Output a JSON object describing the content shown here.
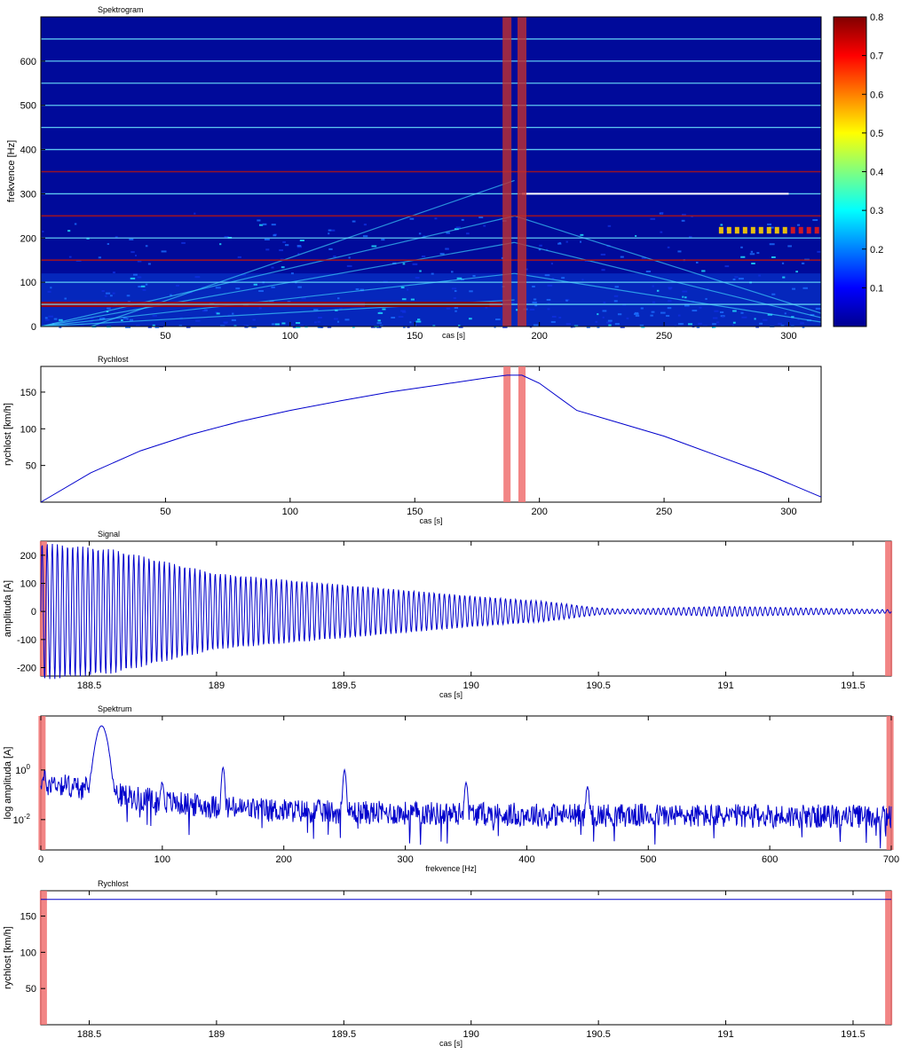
{
  "chart_data": [
    {
      "type": "heatmap",
      "title": "Spektrogram",
      "xlabel": "cas [s]",
      "ylabel": "frekvence [Hz]",
      "xlim": [
        0,
        313
      ],
      "ylim": [
        0,
        700
      ],
      "xticks": [
        50,
        100,
        150,
        200,
        250,
        300
      ],
      "yticks": [
        0,
        100,
        200,
        300,
        400,
        500,
        600
      ],
      "highlight_x": [
        187,
        193
      ],
      "harmonics_hz": [
        50,
        100,
        150,
        200,
        250,
        300,
        350,
        400,
        450,
        500,
        550,
        600,
        650
      ],
      "colorbar": {
        "range": [
          0,
          0.8
        ],
        "ticks": [
          0.1,
          0.2,
          0.3,
          0.4,
          0.5,
          0.6,
          0.7,
          0.8
        ],
        "colormap": "jet"
      }
    },
    {
      "type": "line",
      "title": "Rychlost",
      "xlabel": "cas [s]",
      "ylabel": "rychlost [km/h]",
      "xlim": [
        0,
        313
      ],
      "ylim": [
        0,
        185
      ],
      "xticks": [
        50,
        100,
        150,
        200,
        250,
        300
      ],
      "yticks": [
        50,
        100,
        150
      ],
      "highlight_x": [
        187,
        193
      ],
      "x": [
        0,
        20,
        40,
        60,
        80,
        100,
        120,
        140,
        160,
        180,
        187,
        193,
        200,
        215,
        230,
        250,
        270,
        290,
        313
      ],
      "values": [
        0,
        40,
        70,
        92,
        110,
        125,
        138,
        150,
        160,
        170,
        173,
        173,
        162,
        125,
        110,
        90,
        65,
        40,
        7
      ],
      "color": "#0000cc"
    },
    {
      "type": "line",
      "title": "Signal",
      "xlabel": "cas [s]",
      "ylabel": "amplituda [A]",
      "xlim": [
        188.31,
        191.65
      ],
      "ylim": [
        -230,
        250
      ],
      "xticks": [
        188.5,
        189,
        189.5,
        190,
        190.5,
        191,
        191.5
      ],
      "yticks": [
        -200,
        -100,
        0,
        100,
        200
      ],
      "highlight_x": [
        188.32,
        191.64
      ],
      "envelope_x": [
        188.31,
        188.6,
        189.0,
        189.5,
        190.0,
        190.3,
        190.5,
        190.6,
        191.0,
        191.65
      ],
      "envelope_amplitude": [
        245,
        220,
        135,
        95,
        55,
        35,
        12,
        8,
        18,
        6
      ],
      "frequency_hz": 50,
      "color": "#0000cc"
    },
    {
      "type": "line",
      "title": "Spektrum",
      "xlabel": "frekvence [Hz]",
      "ylabel": "log amplituda [A]",
      "yscale": "log",
      "xlim": [
        0,
        700
      ],
      "xticks": [
        0,
        100,
        200,
        300,
        400,
        500,
        600,
        700
      ],
      "yticks": [
        "10^0",
        "10^-2"
      ],
      "highlight_x": [
        1,
        699
      ],
      "peaks": [
        {
          "x": 50,
          "y": 60
        },
        {
          "x": 100,
          "y": 0.25
        },
        {
          "x": 150,
          "y": 1.2
        },
        {
          "x": 250,
          "y": 1.0
        },
        {
          "x": 350,
          "y": 0.3
        },
        {
          "x": 450,
          "y": 0.2
        }
      ],
      "color": "#0000cc"
    },
    {
      "type": "line",
      "title": "Rychlost",
      "xlabel": "cas [s]",
      "ylabel": "rychlost [km/h]",
      "xlim": [
        188.31,
        191.65
      ],
      "ylim": [
        0,
        185
      ],
      "xticks": [
        188.5,
        189,
        189.5,
        190,
        190.5,
        191,
        191.5
      ],
      "yticks": [
        50,
        100,
        150
      ],
      "highlight_x": [
        188.32,
        191.64
      ],
      "x": [
        188.31,
        191.65
      ],
      "values": [
        173,
        173
      ],
      "color": "#0000cc"
    }
  ]
}
